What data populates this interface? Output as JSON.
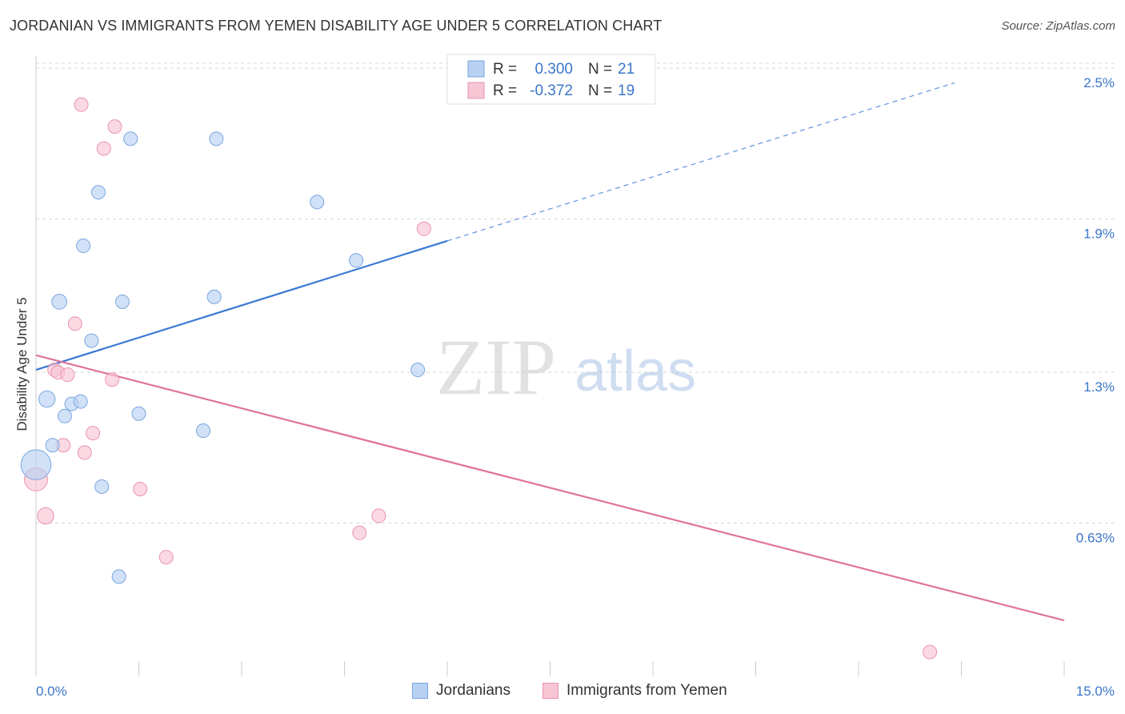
{
  "header": {
    "title": "JORDANIAN VS IMMIGRANTS FROM YEMEN DISABILITY AGE UNDER 5 CORRELATION CHART",
    "source": "Source: ZipAtlas.com"
  },
  "watermark": {
    "zip": "ZIP",
    "atlas": "atlas"
  },
  "colors": {
    "blue_fill": "#b8d1f3",
    "blue_stroke": "#7aa5de",
    "blue_line": "#3a78d4",
    "pink_fill": "#f7c5d4",
    "pink_stroke": "#eb93b0",
    "pink_line": "#e0739a",
    "tick_text": "#3b76c9",
    "grid": "#d8d8d8"
  },
  "legend_top": {
    "rows": [
      {
        "r_label": "R =",
        "r_value": "0.300",
        "n_label": "N =",
        "n_value": "21"
      },
      {
        "r_label": "R =",
        "r_value": "-0.372",
        "n_label": "N =",
        "n_value": "19"
      }
    ]
  },
  "legend_bottom": {
    "items": [
      "Jordanians",
      "Immigrants from Yemen"
    ]
  },
  "chart_data": {
    "type": "scatter",
    "title": "JORDANIAN VS IMMIGRANTS FROM YEMEN DISABILITY AGE UNDER 5 CORRELATION CHART",
    "xlabel": "",
    "ylabel": "Disability Age Under 5",
    "xlim": [
      0,
      15
    ],
    "ylim": [
      0.0,
      2.55
    ],
    "x_tick_labels": [
      "0.0%",
      "15.0%"
    ],
    "y_ticks": [
      {
        "value": 0.63,
        "label": "0.63%"
      },
      {
        "value": 1.25,
        "label": "1.3%"
      },
      {
        "value": 1.88,
        "label": "1.9%"
      },
      {
        "value": 2.5,
        "label": "2.5%"
      }
    ],
    "series": [
      {
        "name": "Jordanians",
        "r": 0.3,
        "n": 21,
        "trend": {
          "x0": 0.0,
          "y0": 1.26,
          "x1_solid": 6.0,
          "y1_solid": 1.79,
          "x1_dashed": 13.4,
          "y1_dashed": 2.44
        },
        "points": [
          {
            "x": 1.38,
            "y": 2.21,
            "s": 1
          },
          {
            "x": 2.63,
            "y": 2.21,
            "s": 1
          },
          {
            "x": 0.91,
            "y": 1.99,
            "s": 1
          },
          {
            "x": 4.1,
            "y": 1.95,
            "s": 1
          },
          {
            "x": 0.69,
            "y": 1.77,
            "s": 1
          },
          {
            "x": 4.67,
            "y": 1.71,
            "s": 1
          },
          {
            "x": 0.34,
            "y": 1.54,
            "s": 1.1
          },
          {
            "x": 1.26,
            "y": 1.54,
            "s": 1
          },
          {
            "x": 2.6,
            "y": 1.56,
            "s": 1
          },
          {
            "x": 0.81,
            "y": 1.38,
            "s": 1
          },
          {
            "x": 5.57,
            "y": 1.26,
            "s": 1
          },
          {
            "x": 0.16,
            "y": 1.14,
            "s": 1.2
          },
          {
            "x": 0.52,
            "y": 1.12,
            "s": 1
          },
          {
            "x": 0.65,
            "y": 1.13,
            "s": 1
          },
          {
            "x": 0.42,
            "y": 1.07,
            "s": 1
          },
          {
            "x": 1.5,
            "y": 1.08,
            "s": 1
          },
          {
            "x": 2.44,
            "y": 1.01,
            "s": 1
          },
          {
            "x": 0.24,
            "y": 0.95,
            "s": 1
          },
          {
            "x": 0.0,
            "y": 0.87,
            "s": 2.2
          },
          {
            "x": 0.96,
            "y": 0.78,
            "s": 1
          },
          {
            "x": 1.21,
            "y": 0.41,
            "s": 1
          }
        ]
      },
      {
        "name": "Immigrants from Yemen",
        "r": -0.372,
        "n": 19,
        "trend": {
          "x0": 0.0,
          "y0": 1.32,
          "x1": 15.0,
          "y1": 0.23
        },
        "points": [
          {
            "x": 0.66,
            "y": 2.35,
            "s": 1
          },
          {
            "x": 1.15,
            "y": 2.26,
            "s": 1
          },
          {
            "x": 0.99,
            "y": 2.17,
            "s": 1
          },
          {
            "x": 5.66,
            "y": 1.84,
            "s": 1
          },
          {
            "x": 0.57,
            "y": 1.45,
            "s": 1
          },
          {
            "x": 0.27,
            "y": 1.26,
            "s": 1
          },
          {
            "x": 0.32,
            "y": 1.25,
            "s": 1
          },
          {
            "x": 0.46,
            "y": 1.24,
            "s": 1
          },
          {
            "x": 1.11,
            "y": 1.22,
            "s": 1
          },
          {
            "x": 0.83,
            "y": 1.0,
            "s": 1
          },
          {
            "x": 0.4,
            "y": 0.95,
            "s": 1
          },
          {
            "x": 0.71,
            "y": 0.92,
            "s": 1
          },
          {
            "x": 0.0,
            "y": 0.81,
            "s": 1.7
          },
          {
            "x": 1.52,
            "y": 0.77,
            "s": 1
          },
          {
            "x": 0.14,
            "y": 0.66,
            "s": 1.2
          },
          {
            "x": 5.0,
            "y": 0.66,
            "s": 1
          },
          {
            "x": 4.72,
            "y": 0.59,
            "s": 1
          },
          {
            "x": 1.9,
            "y": 0.49,
            "s": 1
          },
          {
            "x": 13.04,
            "y": 0.1,
            "s": 1
          }
        ]
      }
    ]
  }
}
